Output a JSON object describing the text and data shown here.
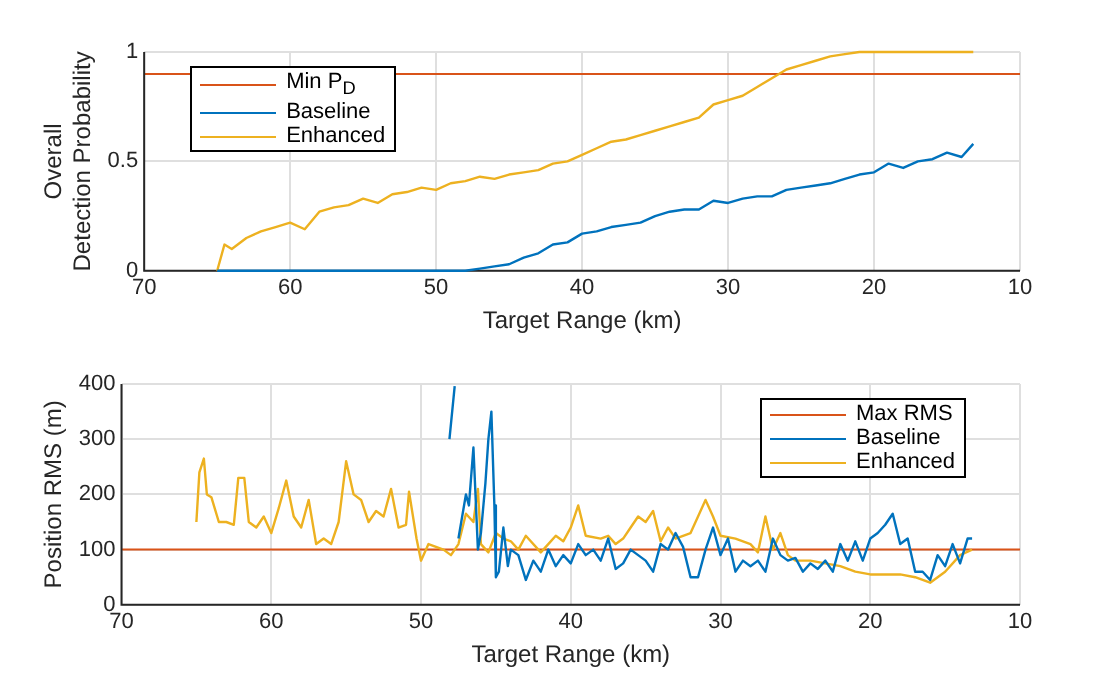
{
  "chart_data": [
    {
      "type": "line",
      "xlabel": "Target Range (km)",
      "ylabel": "Overall Detection Probability",
      "xlim": [
        70,
        10
      ],
      "xticks": [
        70,
        60,
        50,
        40,
        30,
        20,
        10
      ],
      "ylim": [
        0,
        1
      ],
      "yticks": [
        0,
        0.5,
        1
      ],
      "grid": true,
      "legend": "top left",
      "ref_lines": [
        {
          "axis": "y",
          "value": 0.9,
          "label": "Min P$_{D}$",
          "color": "#d95319"
        }
      ],
      "series": [
        {
          "name": "Baseline",
          "color": "#0072bd",
          "x": [
            65,
            60,
            55,
            50,
            48,
            47,
            46,
            45,
            44,
            43,
            42,
            41,
            40,
            39,
            38,
            37,
            36,
            35,
            34,
            33,
            32,
            31,
            30,
            29,
            28,
            27,
            26,
            25,
            24,
            23,
            22,
            21,
            20,
            19,
            18,
            17,
            16,
            15,
            14,
            13.2
          ],
          "values": [
            0,
            0,
            0,
            0,
            0,
            0.01,
            0.02,
            0.03,
            0.06,
            0.08,
            0.12,
            0.13,
            0.17,
            0.18,
            0.2,
            0.21,
            0.22,
            0.25,
            0.27,
            0.28,
            0.28,
            0.32,
            0.31,
            0.33,
            0.34,
            0.34,
            0.37,
            0.38,
            0.39,
            0.4,
            0.42,
            0.44,
            0.45,
            0.49,
            0.47,
            0.5,
            0.51,
            0.54,
            0.52,
            0.58
          ]
        },
        {
          "name": "Enhanced",
          "color": "#edb120",
          "x": [
            65,
            64.5,
            64,
            63,
            62,
            61,
            60,
            59,
            58,
            57,
            56,
            55,
            54,
            53,
            52,
            51,
            50,
            49,
            48,
            47,
            46,
            45,
            44,
            43,
            42,
            41,
            40,
            39,
            38,
            37,
            36,
            35,
            34,
            33,
            32,
            31,
            30,
            29,
            28,
            27,
            26,
            25,
            24,
            23,
            22,
            21,
            20,
            18,
            16,
            13.2
          ],
          "values": [
            0,
            0.12,
            0.1,
            0.15,
            0.18,
            0.2,
            0.22,
            0.19,
            0.27,
            0.29,
            0.3,
            0.33,
            0.31,
            0.35,
            0.36,
            0.38,
            0.37,
            0.4,
            0.41,
            0.43,
            0.42,
            0.44,
            0.45,
            0.46,
            0.49,
            0.5,
            0.53,
            0.56,
            0.59,
            0.6,
            0.62,
            0.64,
            0.66,
            0.68,
            0.7,
            0.76,
            0.78,
            0.8,
            0.84,
            0.88,
            0.92,
            0.94,
            0.96,
            0.98,
            0.99,
            1,
            1,
            1,
            1,
            1
          ]
        }
      ]
    },
    {
      "type": "line",
      "xlabel": "Target Range (km)",
      "ylabel": "Position RMS (m)",
      "xlim": [
        70,
        10
      ],
      "xticks": [
        70,
        60,
        50,
        40,
        30,
        20,
        10
      ],
      "ylim": [
        0,
        400
      ],
      "yticks": [
        0,
        100,
        200,
        300,
        400
      ],
      "grid": true,
      "legend": "top right",
      "ref_lines": [
        {
          "axis": "y",
          "value": 100,
          "label": "Max RMS",
          "color": "#d95319"
        }
      ],
      "series": [
        {
          "name": "Baseline",
          "color": "#0072bd",
          "x": [
            48.1,
            47.75,
            47.6,
            47.5,
            47,
            46.8,
            46.5,
            46.2,
            46,
            45.7,
            45.5,
            45.3,
            45.1,
            45,
            44.8,
            44.5,
            44.2,
            44,
            43.5,
            43,
            42.5,
            42,
            41.5,
            41,
            40.5,
            40,
            39.5,
            39,
            38.5,
            38,
            37.5,
            37,
            36.5,
            36,
            35.5,
            35,
            34.5,
            34,
            33.5,
            33,
            32.5,
            32,
            31.5,
            31,
            30.5,
            30,
            29.5,
            29,
            28.5,
            28,
            27.5,
            27,
            26.5,
            26,
            25.5,
            25,
            24.5,
            24,
            23.5,
            23,
            22.5,
            22,
            21.5,
            21,
            20.5,
            20,
            19.5,
            19,
            18.5,
            18,
            17.5,
            17,
            16.5,
            16,
            15.5,
            15,
            14.5,
            14,
            13.5,
            13.2
          ],
          "values": [
            300,
            396,
            null,
            120,
            200,
            180,
            285,
            100,
            130,
            220,
            300,
            350,
            180,
            50,
            60,
            140,
            70,
            100,
            90,
            45,
            80,
            60,
            100,
            70,
            90,
            75,
            110,
            90,
            100,
            80,
            120,
            65,
            75,
            100,
            90,
            80,
            60,
            110,
            100,
            130,
            105,
            50,
            50,
            100,
            140,
            90,
            120,
            60,
            80,
            70,
            80,
            60,
            120,
            90,
            80,
            85,
            60,
            75,
            65,
            80,
            60,
            110,
            80,
            115,
            80,
            120,
            130,
            145,
            165,
            110,
            120,
            60,
            60,
            45,
            90,
            70,
            110,
            75,
            120,
            120
          ]
        },
        {
          "name": "Enhanced",
          "color": "#edb120",
          "x": [
            65,
            64.8,
            64.5,
            64.3,
            64,
            63.5,
            63,
            62.5,
            62.2,
            61.8,
            61.5,
            61,
            60.5,
            60,
            59.5,
            59,
            58.5,
            58,
            57.5,
            57,
            56.5,
            56,
            55.5,
            55,
            54.5,
            54,
            53.5,
            53,
            52.5,
            52,
            51.5,
            51,
            50.8,
            50.3,
            50,
            49.5,
            49,
            48.5,
            48,
            47.5,
            47,
            46.5,
            46.2,
            46,
            45.5,
            45,
            44.5,
            44,
            43.5,
            43,
            42,
            41.5,
            41,
            40.5,
            40,
            39.5,
            39,
            38,
            37.5,
            37,
            36.5,
            36,
            35.5,
            35,
            34.5,
            34,
            33.5,
            33,
            32,
            31.5,
            31,
            30.5,
            30,
            29,
            28.5,
            28,
            27.5,
            27,
            26.5,
            26,
            25.5,
            25,
            24,
            23,
            22,
            21,
            20,
            19,
            18,
            17,
            16,
            15,
            14,
            13.2
          ],
          "values": [
            150,
            240,
            265,
            200,
            195,
            150,
            150,
            145,
            230,
            230,
            150,
            140,
            160,
            130,
            175,
            225,
            160,
            140,
            190,
            110,
            120,
            110,
            150,
            260,
            200,
            190,
            150,
            170,
            160,
            210,
            140,
            145,
            205,
            120,
            80,
            110,
            105,
            100,
            90,
            110,
            165,
            150,
            210,
            110,
            95,
            130,
            120,
            115,
            100,
            125,
            95,
            110,
            125,
            115,
            140,
            180,
            125,
            120,
            125,
            110,
            120,
            140,
            160,
            150,
            170,
            115,
            140,
            120,
            130,
            160,
            190,
            160,
            125,
            120,
            115,
            110,
            95,
            160,
            100,
            130,
            90,
            80,
            80,
            75,
            70,
            60,
            55,
            55,
            55,
            50,
            40,
            60,
            90,
            100
          ]
        }
      ]
    }
  ]
}
